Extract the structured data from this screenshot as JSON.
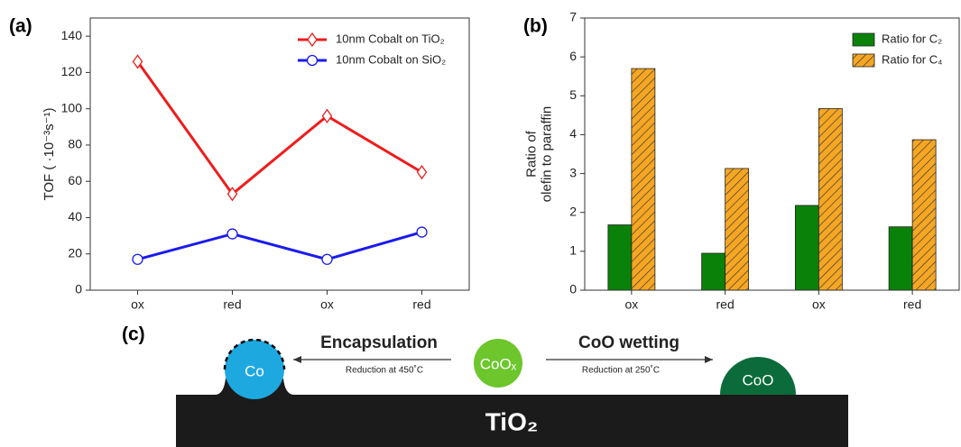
{
  "chart_data": [
    {
      "type": "line",
      "panel_label": "(a)",
      "ylabel": "TOF ( ·10⁻³s⁻¹)",
      "categories": [
        "ox",
        "red",
        "ox",
        "red"
      ],
      "series": [
        {
          "name": "10nm Cobalt on TiO₂",
          "color": "#ee1c1c",
          "marker": "diamond",
          "values": [
            126,
            53,
            96,
            65
          ]
        },
        {
          "name": "10nm Cobalt on SiO₂",
          "color": "#1a1aee",
          "marker": "circle",
          "values": [
            17,
            31,
            17,
            32
          ]
        }
      ],
      "ylim": [
        0,
        150
      ],
      "yticks": [
        0,
        20,
        40,
        60,
        80,
        100,
        120,
        140
      ],
      "legend": "upper right"
    },
    {
      "type": "bar",
      "panel_label": "(b)",
      "ylabel": [
        "Ratio of",
        "olefin to paraffin"
      ],
      "categories": [
        "ox",
        "red",
        "ox",
        "red"
      ],
      "series": [
        {
          "name": "Ratio for C₂",
          "color": "#0a820a",
          "hatch": false,
          "values": [
            1.68,
            0.95,
            2.18,
            1.63
          ]
        },
        {
          "name": "Ratio for C₄",
          "color": "#f5a623",
          "hatch": true,
          "values": [
            5.7,
            3.13,
            4.67,
            3.87
          ]
        }
      ],
      "ylim": [
        0,
        7
      ],
      "yticks": [
        0,
        1,
        2,
        3,
        4,
        5,
        6,
        7
      ],
      "legend": "upper right"
    }
  ],
  "diagram": {
    "panel_label": "(c)",
    "left_arrow": {
      "title": "Encapsulation",
      "note": "Reduction at 450˚C"
    },
    "right_arrow": {
      "title": "CoO wetting",
      "note": "Reduction at 250˚C"
    },
    "particles": [
      "Co",
      "CoOₓ",
      "CoO"
    ],
    "substrate": "TiO₂"
  }
}
